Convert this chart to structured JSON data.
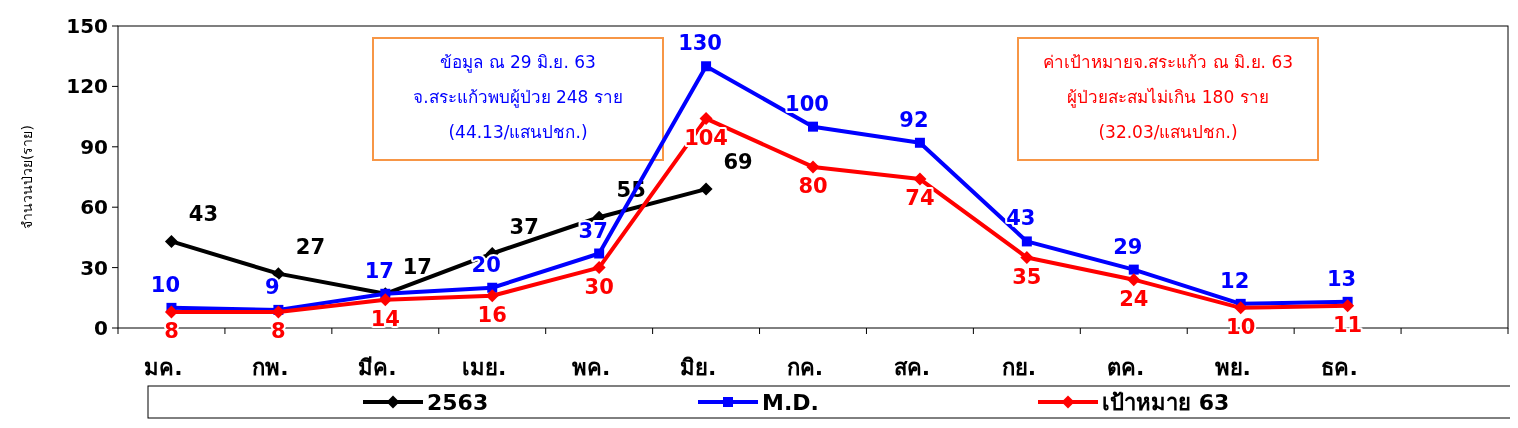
{
  "chart_data": {
    "type": "line",
    "ylabel": "จำนวนป่วย(ราย)",
    "categories": [
      "มค.",
      "กพ.",
      "มีค.",
      "เมย.",
      "พค.",
      "มิย.",
      "กค.",
      "สค.",
      "กย.",
      "ตค.",
      "พย.",
      "ธค.",
      null
    ],
    "series": [
      {
        "name": "2563",
        "color": "#000000",
        "marker": "diamond",
        "values": [
          43,
          27,
          17,
          37,
          55,
          69,
          null,
          null,
          null,
          null,
          null,
          null,
          null
        ]
      },
      {
        "name": "M.D.",
        "color": "#0000ff",
        "marker": "square",
        "values": [
          10,
          9,
          17,
          20,
          37,
          130,
          100,
          92,
          43,
          29,
          12,
          13,
          null
        ]
      },
      {
        "name": "เป้าหมาย 63",
        "color": "#ff0000",
        "marker": "diamond",
        "values": [
          8,
          8,
          14,
          16,
          30,
          104,
          80,
          74,
          35,
          24,
          10,
          11,
          null
        ]
      }
    ],
    "ylim": [
      0,
      150
    ],
    "yticks": [
      0,
      30,
      60,
      90,
      120,
      150
    ],
    "grid": false,
    "legend": "bottom",
    "data_labels": true,
    "line_style": "solid",
    "annotations": [
      "ข้อมูล ณ 29 มิ.ย. 63\nจ.สระแก้วพบผู้ป่วย 248  ราย\n(44.13/แสนปชก.)",
      "ค่าเป้าหมายจ.สระแก้ว ณ มิ.ย. 63\nผู้ป่วยสะสมไม่เกิน 180 ราย\n(32.03/แสนปชก.)"
    ]
  }
}
